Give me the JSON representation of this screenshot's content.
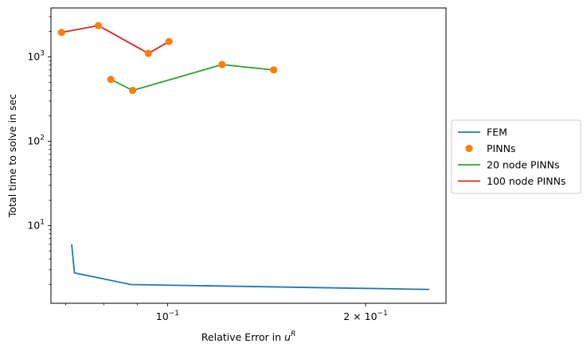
{
  "chart_data": {
    "type": "line",
    "xscale": "log",
    "yscale": "log",
    "xlabel": "Relative Error in u^R",
    "ylabel": "Total time to solve in sec",
    "xlim": [
      0.0665,
      0.265
    ],
    "ylim": [
      1.2,
      3800
    ],
    "x_major_ticks": [
      {
        "value": 0.1,
        "base": "10",
        "exp": "−1",
        "prefix": ""
      },
      {
        "value": 0.2,
        "base": "10",
        "exp": "−1",
        "prefix": "2 × "
      }
    ],
    "x_minor_ticks": [
      0.07,
      0.08,
      0.09,
      0.3
    ],
    "y_major_ticks": [
      {
        "value": 10,
        "base": "10",
        "exp": "1"
      },
      {
        "value": 100,
        "base": "10",
        "exp": "2"
      },
      {
        "value": 1000,
        "base": "10",
        "exp": "3"
      }
    ],
    "series": [
      {
        "name": "FEM",
        "kind": "line",
        "color": "#1f77b4",
        "x": [
          0.0715,
          0.0722,
          0.088,
          0.25
        ],
        "y": [
          6.0,
          2.75,
          2.0,
          1.75
        ]
      },
      {
        "name": "20 node PINNs",
        "kind": "line",
        "color": "#2ca02c",
        "x": [
          0.082,
          0.0885,
          0.121,
          0.145
        ],
        "y": [
          540,
          400,
          810,
          700
        ]
      },
      {
        "name": "100 node PINNs",
        "kind": "line",
        "color": "#d62728",
        "x": [
          0.069,
          0.0785,
          0.0935,
          0.1005
        ],
        "y": [
          1950,
          2350,
          1100,
          1520
        ]
      },
      {
        "name": "PINNs",
        "kind": "scatter",
        "color": "#ff7f0e",
        "x": [
          0.082,
          0.0885,
          0.121,
          0.145,
          0.069,
          0.0785,
          0.0935,
          0.1005
        ],
        "y": [
          540,
          400,
          810,
          700,
          1950,
          2350,
          1100,
          1520
        ]
      }
    ],
    "legend": {
      "placement": "outside-right",
      "entries": [
        {
          "label": "FEM",
          "kind": "line",
          "color": "#1f77b4"
        },
        {
          "label": "PINNs",
          "kind": "marker",
          "color": "#ff7f0e"
        },
        {
          "label": "20 node PINNs",
          "kind": "line",
          "color": "#2ca02c"
        },
        {
          "label": "100 node PINNs",
          "kind": "line",
          "color": "#d62728"
        }
      ]
    }
  }
}
